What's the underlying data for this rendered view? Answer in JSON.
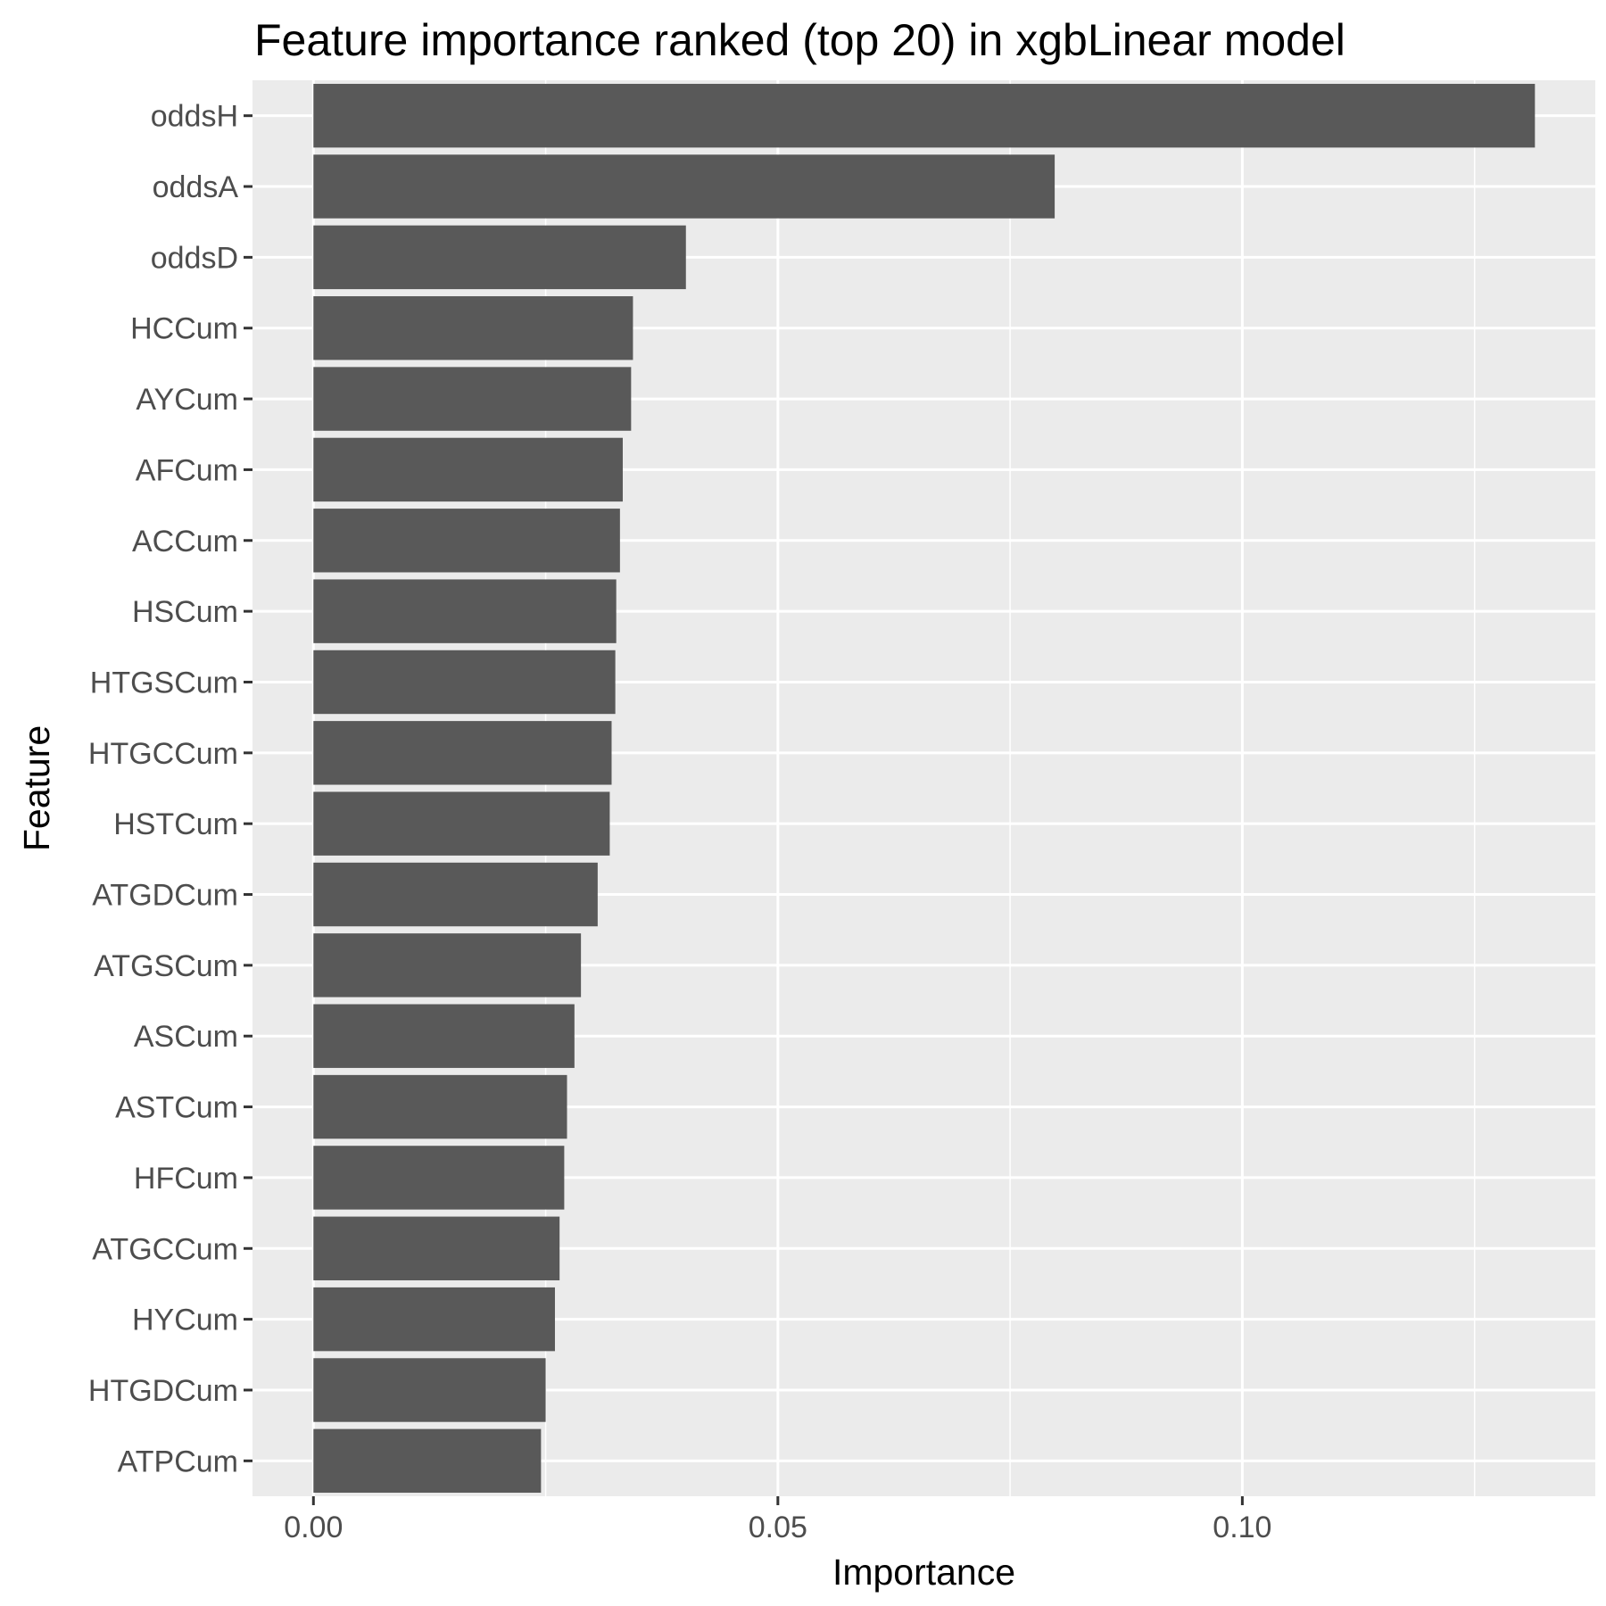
{
  "chart_data": {
    "type": "bar",
    "orientation": "horizontal",
    "title": "Feature importance ranked (top 20) in xgbLinear model",
    "xlabel": "Importance",
    "ylabel": "Feature",
    "categories": [
      "oddsH",
      "oddsA",
      "oddsD",
      "HCCum",
      "AYCum",
      "AFCum",
      "ACCum",
      "HSCum",
      "HTGSCum",
      "HTGCCum",
      "HSTCum",
      "ATGDCum",
      "ATGSCum",
      "ASCum",
      "ASTCum",
      "HFCum",
      "ATGCCum",
      "HYCum",
      "HTGDCum",
      "ATPCum"
    ],
    "values": [
      0.1315,
      0.0798,
      0.0401,
      0.0344,
      0.0342,
      0.0333,
      0.033,
      0.0326,
      0.0325,
      0.0321,
      0.0319,
      0.0306,
      0.0288,
      0.0281,
      0.0273,
      0.027,
      0.0265,
      0.026,
      0.025,
      0.0245
    ],
    "xlim": [
      -0.00656,
      0.138
    ],
    "xticks": [
      0.0,
      0.05,
      0.1
    ],
    "xtick_labels": [
      "0.00",
      "0.05",
      "0.10"
    ],
    "x_minor_gridlines": [
      0.025,
      0.075,
      0.125
    ],
    "grid": true,
    "bar_color": "#595959",
    "panel_background": "#ebebeb",
    "gridline_color": "#ffffff"
  }
}
